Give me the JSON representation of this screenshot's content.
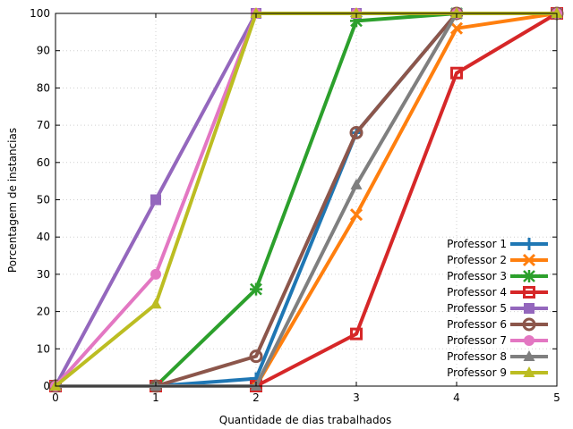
{
  "chart_data": {
    "type": "line",
    "title": "",
    "xlabel": "Quantidade de dias trabalhados",
    "ylabel": "Porcentagem de instancias",
    "xlim": [
      0,
      5
    ],
    "ylim": [
      0,
      100
    ],
    "x_ticks": [
      "0",
      "1",
      "2",
      "3",
      "4",
      "5"
    ],
    "y_ticks": [
      "0",
      "10",
      "20",
      "30",
      "40",
      "50",
      "60",
      "70",
      "80",
      "90",
      "100"
    ],
    "grid": true,
    "legend_position": "bottom-right",
    "x": [
      0,
      1,
      2,
      3,
      4,
      5
    ],
    "series": [
      {
        "name": "Professor 1",
        "values": [
          0,
          0,
          2,
          68,
          100,
          100
        ],
        "color": "#1f77b4",
        "marker": "plus"
      },
      {
        "name": "Professor 2",
        "values": [
          0,
          0,
          0,
          46,
          96,
          100
        ],
        "color": "#ff7f0e",
        "marker": "x"
      },
      {
        "name": "Professor 3",
        "values": [
          0,
          0,
          26,
          98,
          100,
          100
        ],
        "color": "#2ca02c",
        "marker": "star"
      },
      {
        "name": "Professor 4",
        "values": [
          0,
          0,
          0,
          14,
          84,
          100
        ],
        "color": "#d62728",
        "marker": "square-open"
      },
      {
        "name": "Professor 5",
        "values": [
          0,
          50,
          100,
          100,
          100,
          100
        ],
        "color": "#9467bd",
        "marker": "square"
      },
      {
        "name": "Professor 6",
        "values": [
          0,
          0,
          8,
          68,
          100,
          100
        ],
        "color": "#8c564b",
        "marker": "circle-open"
      },
      {
        "name": "Professor 7",
        "values": [
          0,
          30,
          100,
          100,
          100,
          100
        ],
        "color": "#e377c2",
        "marker": "circle"
      },
      {
        "name": "Professor 8",
        "values": [
          0,
          0,
          0,
          54,
          100,
          100
        ],
        "color": "#7f7f7f",
        "marker": "triangle"
      },
      {
        "name": "Professor 9",
        "values": [
          0,
          22,
          100,
          100,
          100,
          100
        ],
        "color": "#bcbd22",
        "marker": "triangle"
      }
    ]
  }
}
